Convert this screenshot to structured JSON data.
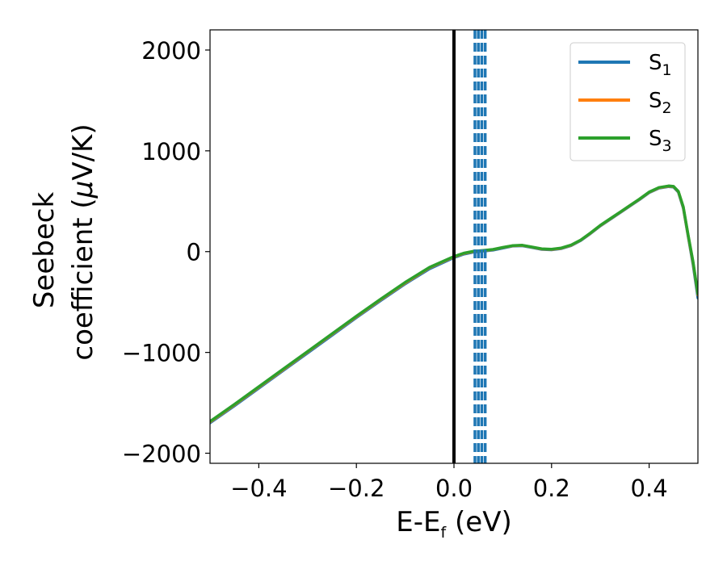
{
  "chart_data": {
    "type": "line",
    "title": "",
    "xlabel": {
      "main": "E-E",
      "sub": "f",
      "unit": " (eV)"
    },
    "ylabel": {
      "line1": "Seebeck",
      "line2": "coefficient  (",
      "mu": "μ",
      "unit": "V/K)"
    },
    "xlim": [
      -0.5,
      0.5
    ],
    "ylim": [
      -2100,
      2200
    ],
    "xticks": [
      -0.4,
      -0.2,
      0.0,
      0.2,
      0.4
    ],
    "xtick_labels": [
      "−0.4",
      "−0.2",
      "0.0",
      "0.2",
      "0.4"
    ],
    "yticks": [
      -2000,
      -1000,
      0,
      1000,
      2000
    ],
    "ytick_labels": [
      "−2000",
      "−1000",
      "0",
      "1000",
      "2000"
    ],
    "grid": false,
    "legend_position": "top-right",
    "legend": [
      {
        "base": "S",
        "sub": "1",
        "color": "#1f77b4"
      },
      {
        "base": "S",
        "sub": "2",
        "color": "#ff7f0e"
      },
      {
        "base": "S",
        "sub": "3",
        "color": "#2ca02c"
      }
    ],
    "reference_line": {
      "x": 0.0,
      "color": "#000000",
      "style": "solid"
    },
    "dashed_lines": {
      "x": [
        0.043,
        0.05,
        0.057,
        0.064
      ],
      "color": "#1f77b4",
      "style": "dashed"
    },
    "x": [
      -0.5,
      -0.45,
      -0.4,
      -0.35,
      -0.3,
      -0.25,
      -0.2,
      -0.15,
      -0.1,
      -0.05,
      0.0,
      0.02,
      0.04,
      0.06,
      0.08,
      0.1,
      0.12,
      0.14,
      0.16,
      0.18,
      0.2,
      0.22,
      0.24,
      0.26,
      0.28,
      0.3,
      0.32,
      0.34,
      0.36,
      0.38,
      0.4,
      0.42,
      0.44,
      0.45,
      0.46,
      0.47,
      0.48,
      0.49,
      0.5
    ],
    "series": [
      {
        "name": "S1",
        "color": "#1f77b4",
        "values": [
          -1700,
          -1530,
          -1355,
          -1180,
          -1005,
          -830,
          -655,
          -485,
          -320,
          -170,
          -60,
          -25,
          -5,
          5,
          15,
          35,
          55,
          58,
          40,
          22,
          18,
          30,
          60,
          110,
          180,
          255,
          320,
          385,
          450,
          515,
          585,
          630,
          645,
          640,
          590,
          430,
          150,
          -130,
          -460
        ]
      },
      {
        "name": "S2",
        "color": "#ff7f0e",
        "values": [
          -1690,
          -1520,
          -1345,
          -1170,
          -995,
          -820,
          -645,
          -475,
          -310,
          -160,
          -52,
          -18,
          2,
          10,
          20,
          40,
          58,
          62,
          44,
          26,
          22,
          34,
          64,
          114,
          184,
          259,
          324,
          389,
          454,
          519,
          589,
          634,
          650,
          645,
          595,
          440,
          160,
          -110,
          -430
        ]
      },
      {
        "name": "S3",
        "color": "#2ca02c",
        "values": [
          -1685,
          -1515,
          -1340,
          -1165,
          -990,
          -815,
          -640,
          -470,
          -305,
          -155,
          -48,
          -15,
          4,
          12,
          22,
          42,
          60,
          64,
          46,
          28,
          24,
          36,
          66,
          116,
          186,
          261,
          326,
          391,
          456,
          521,
          591,
          636,
          652,
          647,
          598,
          445,
          165,
          -100,
          -420
        ]
      }
    ]
  }
}
